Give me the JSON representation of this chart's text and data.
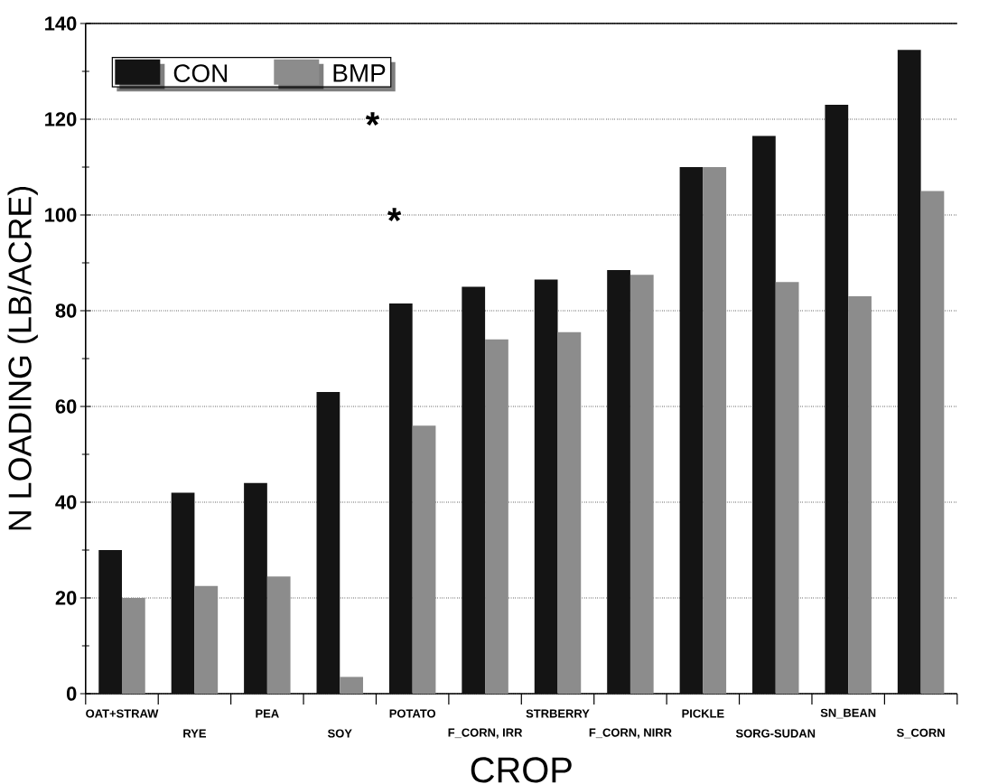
{
  "chart_data": {
    "type": "bar",
    "xlabel": "CROP",
    "ylabel": "N LOADING (LB/ACRE)",
    "categories": [
      "OAT+STRAW",
      "RYE",
      "PEA",
      "SOY",
      "POTATO",
      "F_CORN, IRR",
      "STRBERRY",
      "F_CORN, NIRR",
      "PICKLE",
      "SORG-SUDAN",
      "SN_BEAN",
      "S_CORN"
    ],
    "series": [
      {
        "name": "CON",
        "color": "#141414",
        "values": [
          30,
          42,
          44,
          63,
          81.5,
          85,
          86.5,
          88.5,
          110,
          116.5,
          123,
          134.5
        ]
      },
      {
        "name": "BMP",
        "color": "#8c8c8c",
        "values": [
          20,
          22.5,
          24.5,
          3.5,
          56,
          74,
          75.5,
          87.5,
          110,
          86,
          83,
          105
        ]
      }
    ],
    "ylim": [
      0,
      140
    ],
    "yticks": [
      0,
      20,
      40,
      60,
      80,
      100,
      120,
      140
    ],
    "grid": "y",
    "legend": "top left",
    "annotations": [
      "*",
      "*"
    ]
  }
}
